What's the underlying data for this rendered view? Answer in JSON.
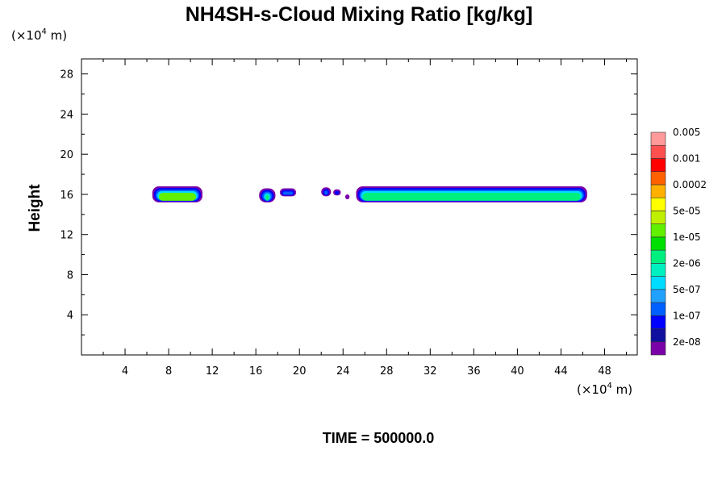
{
  "chart_data": {
    "type": "heatmap",
    "title": "NH4SH-s-Cloud Mixing Ratio [kg/kg]",
    "xlabel": "",
    "ylabel": "Height",
    "x_unit": "m",
    "y_unit": "m",
    "unit_multiplier_base": "10",
    "unit_multiplier_exp": "4",
    "x_unit_prefix": "(×",
    "unit_suffix": " m)",
    "xlim": [
      0,
      51
    ],
    "ylim": [
      0,
      29.5
    ],
    "x_ticks": [
      4,
      8,
      12,
      16,
      20,
      24,
      28,
      32,
      36,
      40,
      44,
      48
    ],
    "y_ticks": [
      4,
      8,
      12,
      16,
      20,
      24,
      28
    ],
    "x_minor_step": 2,
    "y_minor_step": 2,
    "time_label": "TIME = 500000.0",
    "colorbar": {
      "colors": [
        "#7a00a8",
        "#1010a0",
        "#0000ff",
        "#0060ff",
        "#20a0ff",
        "#00dcff",
        "#00f0c0",
        "#00f080",
        "#00e000",
        "#60f000",
        "#c0f000",
        "#ffff00",
        "#ffb000",
        "#ff6000",
        "#ff0000",
        "#ff5050",
        "#ff9a9a"
      ],
      "labels": [
        "2e-08",
        "1e-07",
        "5e-07",
        "2e-06",
        "1e-05",
        "5e-05",
        "0.0002",
        "0.001",
        "0.005"
      ]
    },
    "cloud_layers": [
      {
        "x_start": 6.5,
        "x_end": 11.1,
        "y_bottom": 15.2,
        "y_top": 16.8,
        "core_color": "#60f000"
      },
      {
        "x_start": 16.3,
        "x_end": 17.8,
        "y_bottom": 15.2,
        "y_top": 16.6,
        "core_color": "#00f080"
      },
      {
        "x_start": 18.2,
        "x_end": 19.7,
        "y_bottom": 15.8,
        "y_top": 16.6,
        "core_color": "#00dcff"
      },
      {
        "x_start": 22.0,
        "x_end": 22.9,
        "y_bottom": 15.8,
        "y_top": 16.7,
        "core_color": "#00dcff"
      },
      {
        "x_start": 23.1,
        "x_end": 23.8,
        "y_bottom": 15.9,
        "y_top": 16.5,
        "core_color": "#20a0ff"
      },
      {
        "x_start": 24.2,
        "x_end": 24.6,
        "y_bottom": 15.5,
        "y_top": 16.0,
        "core_color": "#0060ff"
      },
      {
        "x_start": 25.2,
        "x_end": 46.4,
        "y_bottom": 15.2,
        "y_top": 16.8,
        "core_color": "#00f080"
      }
    ]
  }
}
